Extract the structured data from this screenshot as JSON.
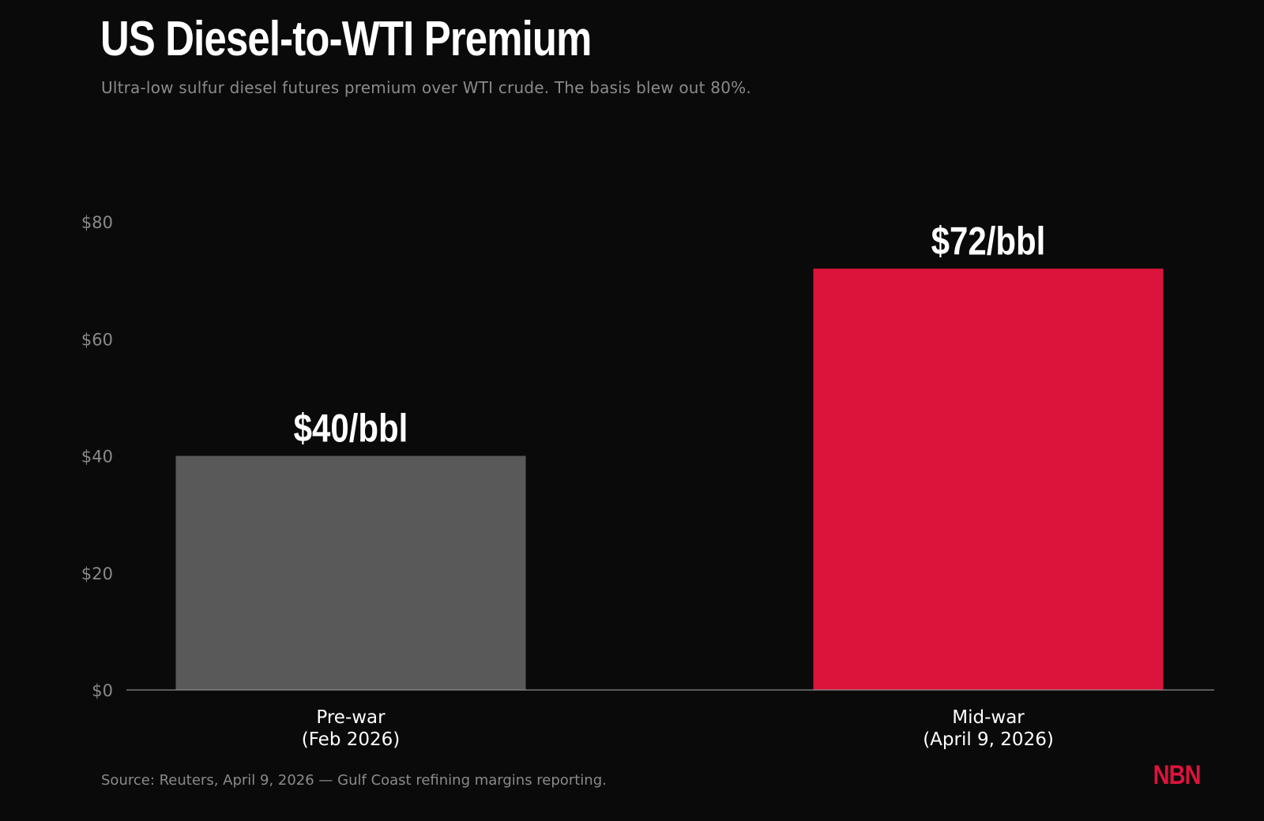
{
  "header": {
    "title": "US Diesel-to-WTI Premium",
    "subtitle": "Ultra-low sulfur diesel futures premium over WTI crude. The basis blew out 80%."
  },
  "chart_data": {
    "type": "bar",
    "categories": [
      [
        "Pre-war",
        "(Feb 2026)"
      ],
      [
        "Mid-war",
        "(April 9, 2026)"
      ]
    ],
    "values": [
      40,
      72
    ],
    "value_labels": [
      "$40/bbl",
      "$72/bbl"
    ],
    "bar_colors": [
      "#595959",
      "#dc143c"
    ],
    "y_ticks": [
      0,
      20,
      40,
      60,
      80
    ],
    "y_tick_labels": [
      "$0",
      "$20",
      "$40",
      "$60",
      "$80"
    ],
    "ylim": [
      0,
      80
    ],
    "grid": false,
    "legend": false
  },
  "footer": {
    "source": "Source: Reuters, April 9, 2026 — Gulf Coast refining margins reporting.",
    "brand": "NBN"
  },
  "colors": {
    "background": "#0a0a0a",
    "accent": "#dc143c",
    "muted_bar": "#595959",
    "axis": "#8a8a8a"
  }
}
